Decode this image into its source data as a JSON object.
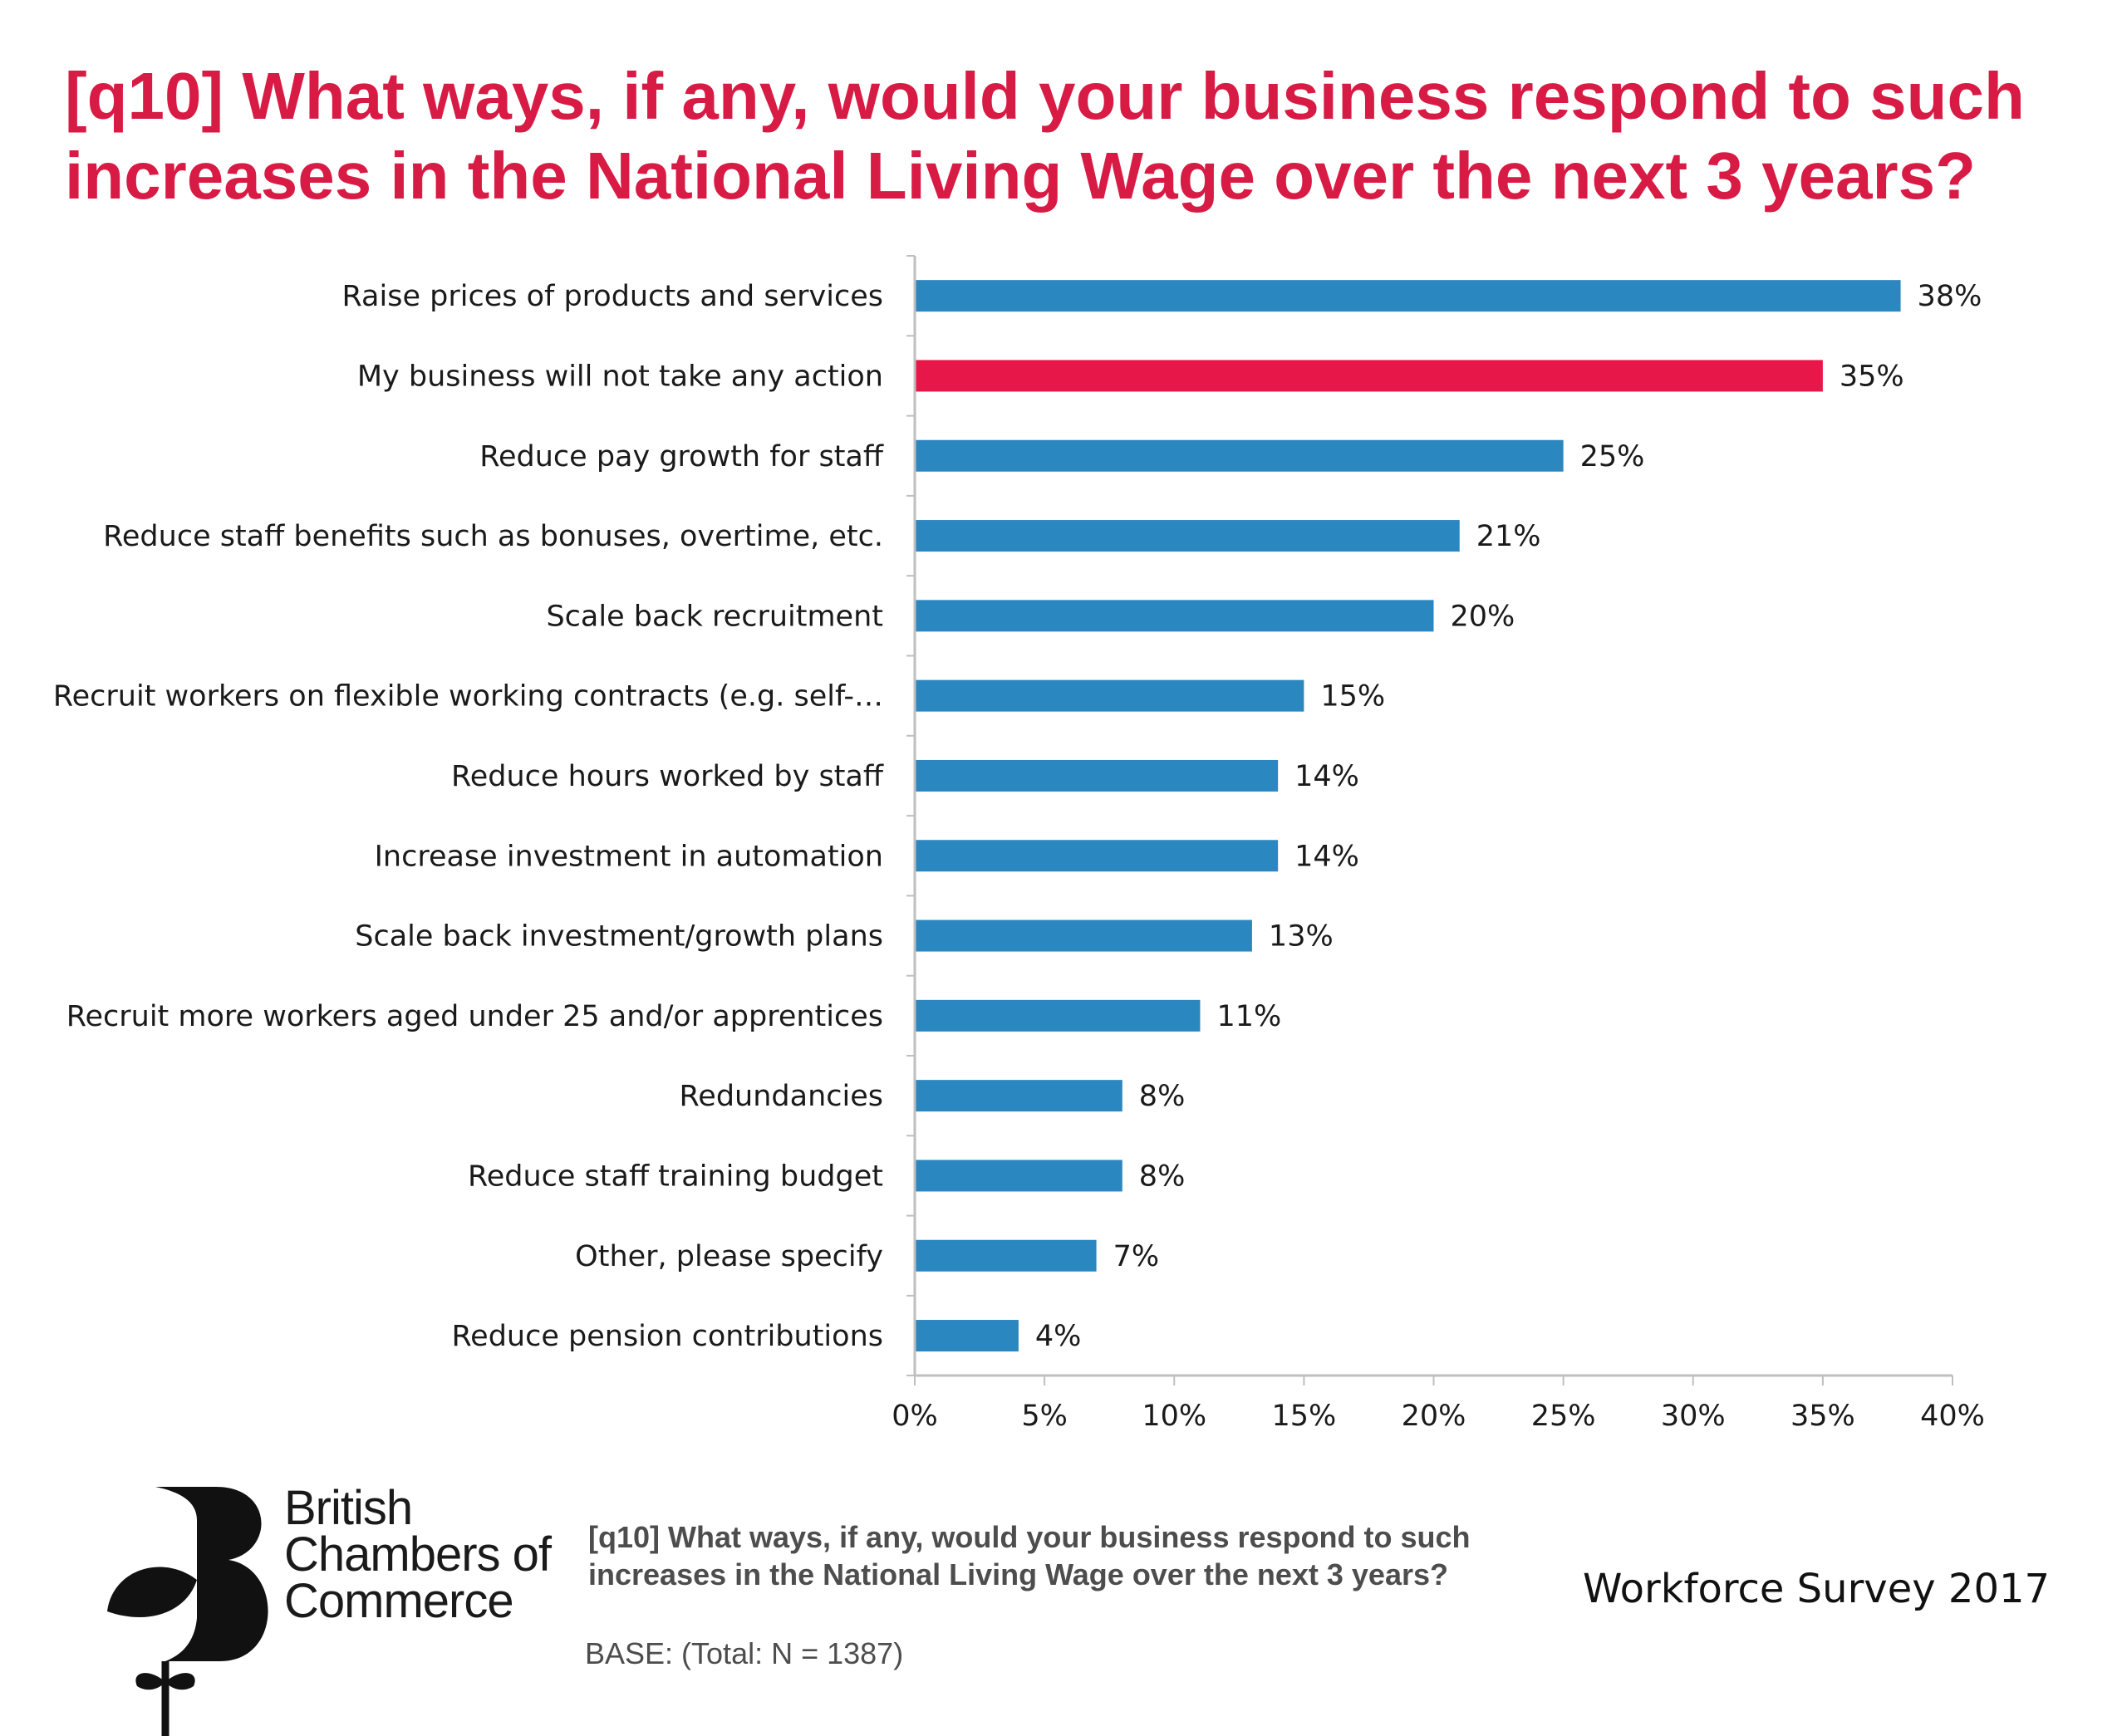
{
  "title_lines": [
    "[q10] What ways, if any, would your business respond to such",
    "increases in the National Living Wage over the next 3 years?"
  ],
  "colors": {
    "title": "#d81b44",
    "bar_default": "#2a87bf",
    "bar_highlight": "#e8174a",
    "axis": "#bfbfbf",
    "text": "#1a1a1a",
    "footer_text": "#4d4d4d"
  },
  "chart_data": {
    "type": "bar",
    "orientation": "horizontal",
    "categories": [
      "Raise prices of products and services",
      "My business will not take any action",
      "Reduce pay growth for staff",
      "Reduce staff benefits such as bonuses, overtime, etc.",
      "Scale back recruitment",
      "Recruit workers on flexible working contracts (e.g. self-…",
      "Reduce hours worked by staff",
      "Increase investment in automation",
      "Scale back investment/growth plans",
      "Recruit more workers aged under 25 and/or apprentices",
      "Redundancies",
      "Reduce staff training budget",
      "Other, please specify",
      "Reduce pension contributions"
    ],
    "values": [
      38,
      35,
      25,
      21,
      20,
      15,
      14,
      14,
      13,
      11,
      8,
      8,
      7,
      4
    ],
    "value_labels": [
      "38%",
      "35%",
      "25%",
      "21%",
      "20%",
      "15%",
      "14%",
      "14%",
      "13%",
      "11%",
      "8%",
      "8%",
      "7%",
      "4%"
    ],
    "highlight_index": 1,
    "xlim": [
      0,
      40
    ],
    "xticks": [
      0,
      5,
      10,
      15,
      20,
      25,
      30,
      35,
      40
    ],
    "xtick_labels": [
      "0%",
      "5%",
      "10%",
      "15%",
      "20%",
      "25%",
      "30%",
      "35%",
      "40%"
    ],
    "grid": false,
    "legend": "none"
  },
  "logo": {
    "icon": "bcc-b-flower-logo",
    "name_lines": [
      "British",
      "Chambers of",
      "Commerce"
    ]
  },
  "footer": {
    "question_lines": [
      "[q10] What ways, if any, would your business respond to such",
      "increases in the National Living Wage over the next 3 years?"
    ],
    "base": "BASE: (Total: N = 1387)",
    "survey": "Workforce Survey 2017"
  }
}
